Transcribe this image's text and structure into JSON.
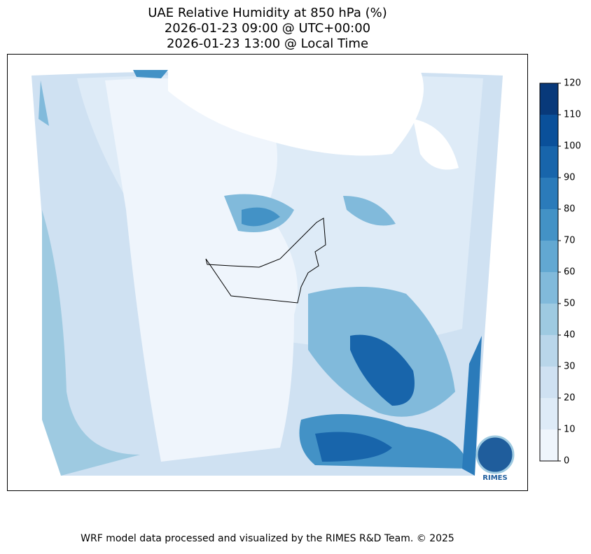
{
  "title_lines": [
    "UAE Relative Humidity at 850 hPa (%)",
    "2026-01-23 09:00 @ UTC+00:00",
    "2026-01-23 13:00 @ Local Time"
  ],
  "colorbar": {
    "ticks": [
      0,
      10,
      20,
      30,
      40,
      50,
      60,
      70,
      80,
      90,
      100,
      110,
      120
    ],
    "colors": [
      "#eff5fc",
      "#deebf7",
      "#cfe1f2",
      "#b9d6ea",
      "#9ecae1",
      "#81badb",
      "#62a8d2",
      "#4392c6",
      "#2b7bba",
      "#1865ab",
      "#0a509a",
      "#08397a"
    ]
  },
  "logo": {
    "label": "RIMES"
  },
  "footer": "WRF model data processed and visualized by the RIMES R&D Team. © 2025"
}
